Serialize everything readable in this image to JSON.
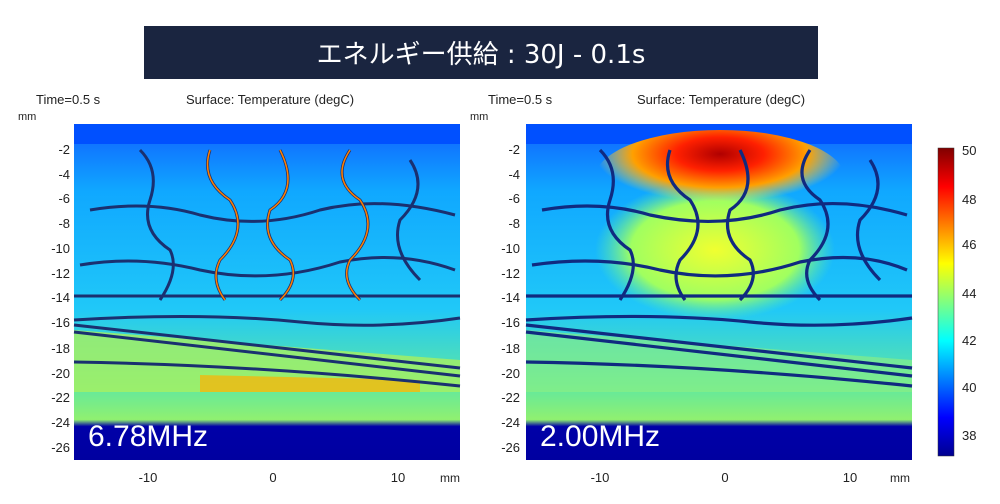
{
  "banner": {
    "title": "エネルギー供給 : 30J - 0.1s"
  },
  "chart_data": [
    {
      "type": "heatmap",
      "title": "Surface: Temperature (degC)",
      "time_label": "Time=0.5 s",
      "annotation": "6.78MHz",
      "xlabel": "mm",
      "ylabel": "mm",
      "x_ticks": [
        -10,
        0,
        10
      ],
      "y_ticks": [
        -2,
        -4,
        -6,
        -8,
        -10,
        -12,
        -14,
        -16,
        -18,
        -20,
        -22,
        -24,
        -26
      ],
      "xlim": [
        -15.5,
        15
      ],
      "ylim": [
        -26.5,
        0
      ]
    },
    {
      "type": "heatmap",
      "title": "Surface: Temperature (degC)",
      "time_label": "Time=0.5 s",
      "annotation": "2.00MHz",
      "xlabel": "mm",
      "ylabel": "mm",
      "x_ticks": [
        -10,
        0,
        10
      ],
      "y_ticks": [
        -2,
        -4,
        -6,
        -8,
        -10,
        -12,
        -14,
        -16,
        -18,
        -20,
        -22,
        -24,
        -26
      ],
      "xlim": [
        -15.5,
        15
      ],
      "ylim": [
        -26.5,
        0
      ]
    }
  ],
  "colorbar": {
    "ticks": [
      50,
      48,
      46,
      44,
      42,
      40,
      38
    ],
    "range": [
      37,
      50
    ],
    "colormap": "jet"
  }
}
